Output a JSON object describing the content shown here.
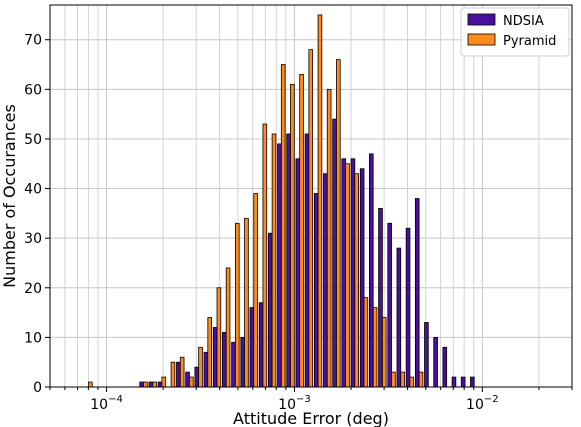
{
  "chart_data": {
    "type": "bar",
    "title": "",
    "xlabel": "Attitude Error (deg)",
    "ylabel": "Number of Occurances",
    "x_scale": "log",
    "xlim": [
      5e-05,
      0.03
    ],
    "ylim": [
      0,
      77
    ],
    "grid": true,
    "legend_position": "top-right",
    "x_ticks": [
      {
        "value": 0.0001,
        "base": "10",
        "exp": "−4"
      },
      {
        "value": 0.001,
        "base": "10",
        "exp": "−3"
      },
      {
        "value": 0.01,
        "base": "10",
        "exp": "−2"
      }
    ],
    "y_ticks": [
      0,
      10,
      20,
      30,
      40,
      50,
      60,
      70
    ],
    "y_tick_labels": [
      "0",
      "10",
      "20",
      "30",
      "40",
      "50",
      "60",
      "70"
    ],
    "bin_centers": [
      8.01e-05,
      8.96e-05,
      0.0001003,
      0.0001122,
      0.0001256,
      0.0001406,
      0.0001573,
      0.0001761,
      0.000197,
      0.0002205,
      0.0002468,
      0.0002762,
      0.0003091,
      0.0003459,
      0.0003871,
      0.0004332,
      0.0004849,
      0.0005426,
      0.0006073,
      0.0006797,
      0.0007606,
      0.0008513,
      0.0009527,
      0.0010663,
      0.0011933,
      0.0013355,
      0.0014947,
      0.0016728,
      0.0018721,
      0.0020952,
      0.0023448,
      0.0026243,
      0.002937,
      0.003287,
      0.0036786,
      0.004117,
      0.0046075,
      0.0051566,
      0.005771,
      0.0064587,
      0.0072283,
      0.0080896,
      0.0090536,
      0.0101323,
      0.0113397,
      0.0126909,
      0.0142032,
      0.0158955,
      0.0177896,
      0.0199094,
      0.0222818
    ],
    "series": [
      {
        "name": "NDSIA",
        "color": "#4b0f9e",
        "values": [
          0,
          0,
          0,
          0,
          0,
          0,
          1,
          1,
          1,
          0,
          5,
          3,
          4,
          7,
          12,
          11,
          9,
          10,
          16,
          17,
          31,
          49,
          51,
          46,
          51,
          39,
          43,
          54,
          46,
          46,
          44,
          47,
          36,
          33,
          28,
          32,
          38,
          13,
          10,
          8,
          2,
          2,
          2,
          0,
          0,
          0,
          0,
          0,
          0,
          0,
          0
        ]
      },
      {
        "name": "Pyramid",
        "color": "#ff8c1a",
        "values": [
          1,
          0,
          0,
          0,
          0,
          0,
          1,
          1,
          2,
          5,
          6,
          2,
          8,
          14,
          20,
          24,
          33,
          34,
          39,
          53,
          51,
          65,
          61,
          63,
          68,
          75,
          60,
          66,
          45,
          43,
          18,
          16,
          14,
          3,
          3,
          2,
          3,
          0,
          0,
          0,
          0,
          0,
          0,
          0,
          0,
          0,
          0,
          0,
          0,
          0,
          0
        ]
      }
    ]
  }
}
